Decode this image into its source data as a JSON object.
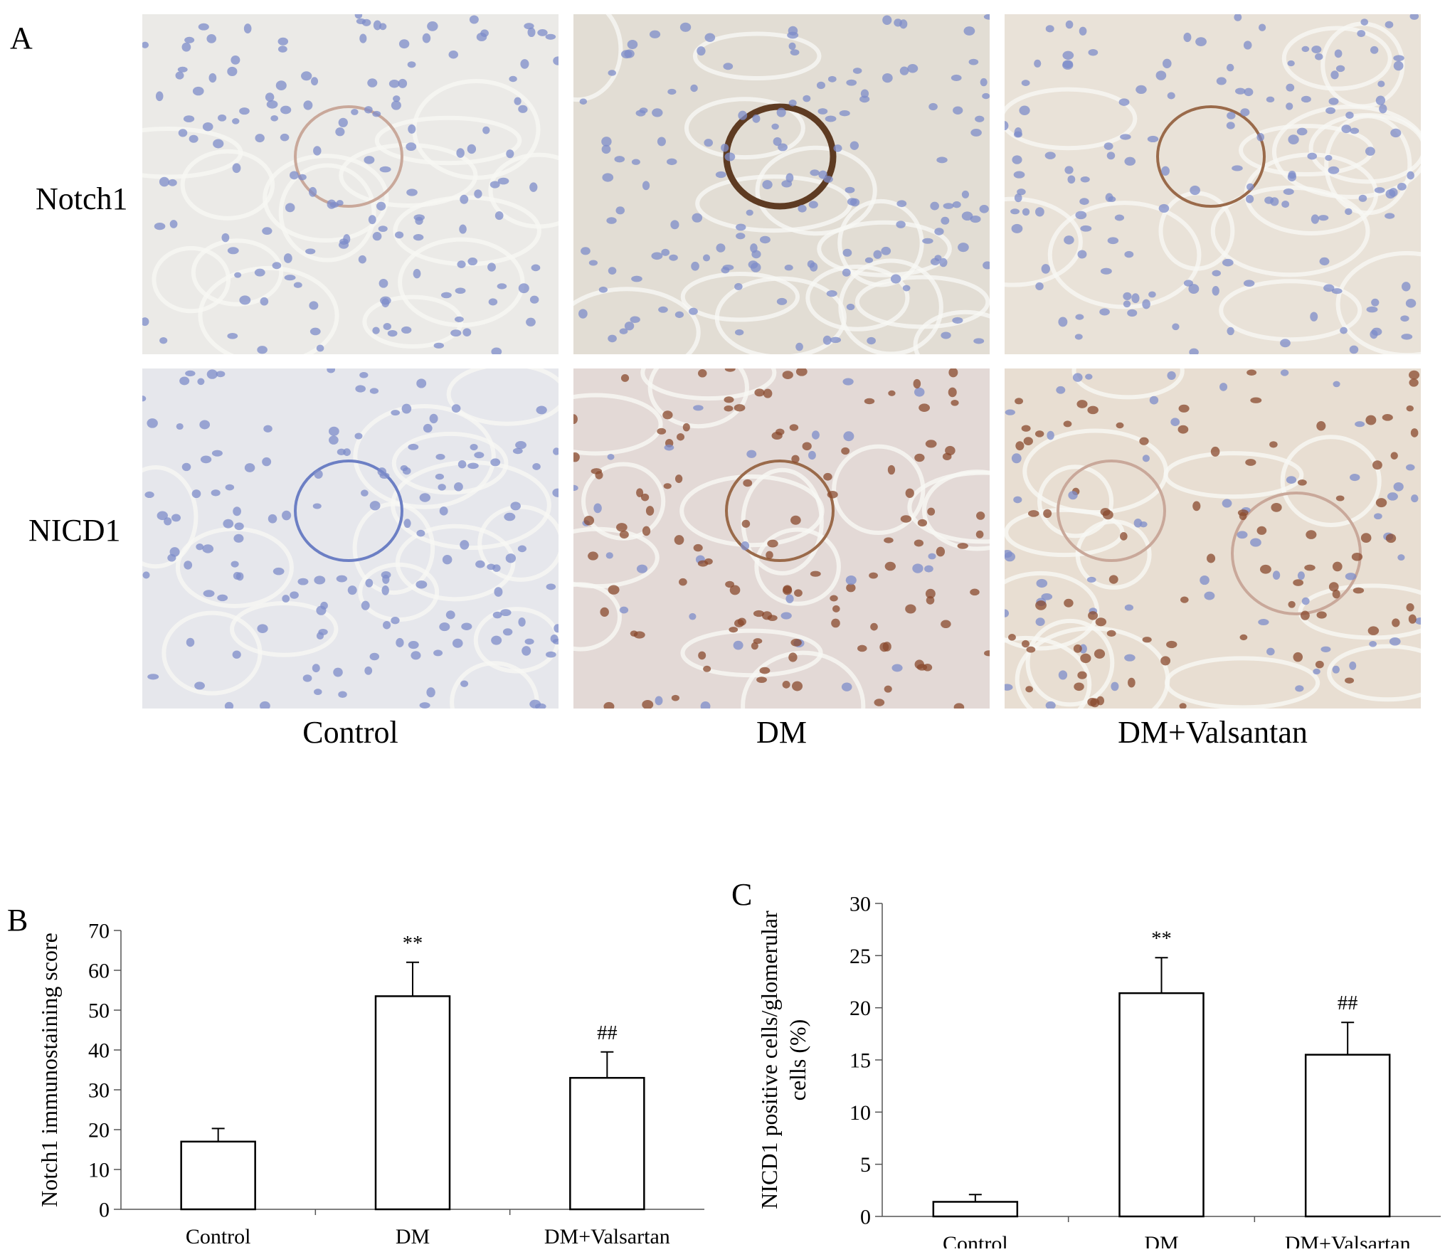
{
  "panel_a": {
    "letter": "A",
    "rows": [
      "Notch1",
      "NICD1"
    ],
    "columns": [
      "Control",
      "DM",
      "DM+Valsantan"
    ]
  },
  "colors": {
    "bar_fill": "#ffffff",
    "bar_stroke": "#000000",
    "tissue_light": "#e8e6e2",
    "nucleus_blue": "#7d8cc9",
    "stain_brown": "#a36a45",
    "nucleus_brown": "#8a4a2e"
  },
  "chart_data": [
    {
      "panel": "B",
      "type": "bar",
      "title": "",
      "xlabel": "",
      "ylabel": "Notch1 immunostaining score",
      "categories": [
        "Control",
        "DM",
        "DM+Valsartan"
      ],
      "values": [
        17,
        53.5,
        33
      ],
      "errors": [
        3.3,
        8.5,
        6.5
      ],
      "annotations": [
        "",
        "**",
        "##"
      ],
      "ylim": [
        0,
        70
      ],
      "yticks": [
        0,
        10,
        20,
        30,
        40,
        50,
        60,
        70
      ],
      "grid": false
    },
    {
      "panel": "C",
      "type": "bar",
      "title": "",
      "xlabel": "",
      "ylabel": "NICD1 positive cells/glomerular cells (%)",
      "ylabel_lines": [
        "NICD1 positive cells/glomerular",
        "cells (%)"
      ],
      "categories": [
        "Control",
        "DM",
        "DM+Valsartan"
      ],
      "values": [
        1.4,
        21.4,
        15.5
      ],
      "errors": [
        0.7,
        3.4,
        3.1
      ],
      "annotations": [
        "",
        "**",
        "##"
      ],
      "ylim": [
        0,
        30
      ],
      "yticks": [
        0,
        5,
        10,
        15,
        20,
        25,
        30
      ],
      "grid": false
    }
  ]
}
